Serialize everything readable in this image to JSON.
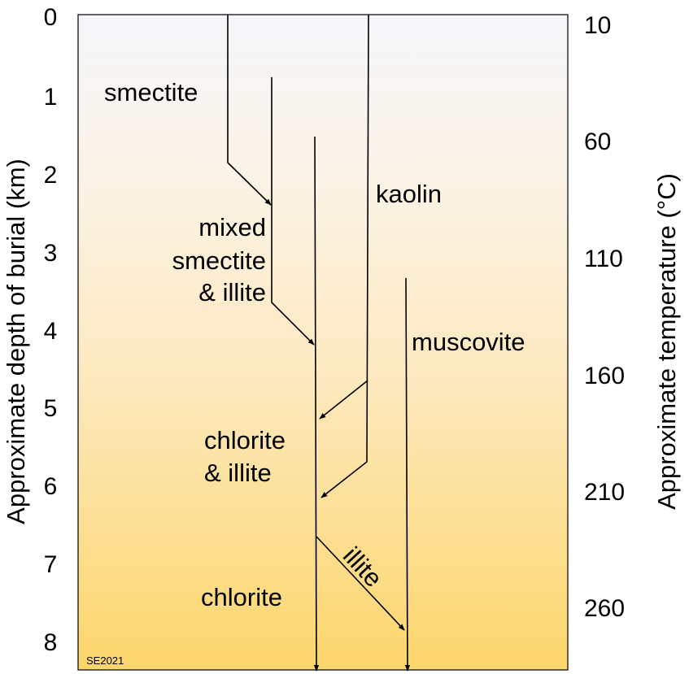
{
  "axes": {
    "left_title": "Approximate depth of burial (km)",
    "right_title": "Approximate temperature (°C)",
    "depth_ticks": [
      "0",
      "1",
      "2",
      "3",
      "4",
      "5",
      "6",
      "7",
      "8"
    ],
    "temperature_ticks": [
      "10",
      "60",
      "110",
      "160",
      "210",
      "260"
    ]
  },
  "labels": {
    "smectite": "smectite",
    "kaolin": "kaolin",
    "mixed_line1": "mixed",
    "mixed_line2": "smectite",
    "mixed_line3": "& illite",
    "muscovite": "muscovite",
    "chlorite_illite_line1": "chlorite",
    "chlorite_illite_line2": "& illite",
    "illite": "illite",
    "chlorite": "chlorite"
  },
  "credit": "SE2021",
  "colors": {
    "gradient_top": "#f5f6fb",
    "gradient_mid": "#fcefd6",
    "gradient_bottom": "#fcd66b",
    "line": "#000000"
  }
}
